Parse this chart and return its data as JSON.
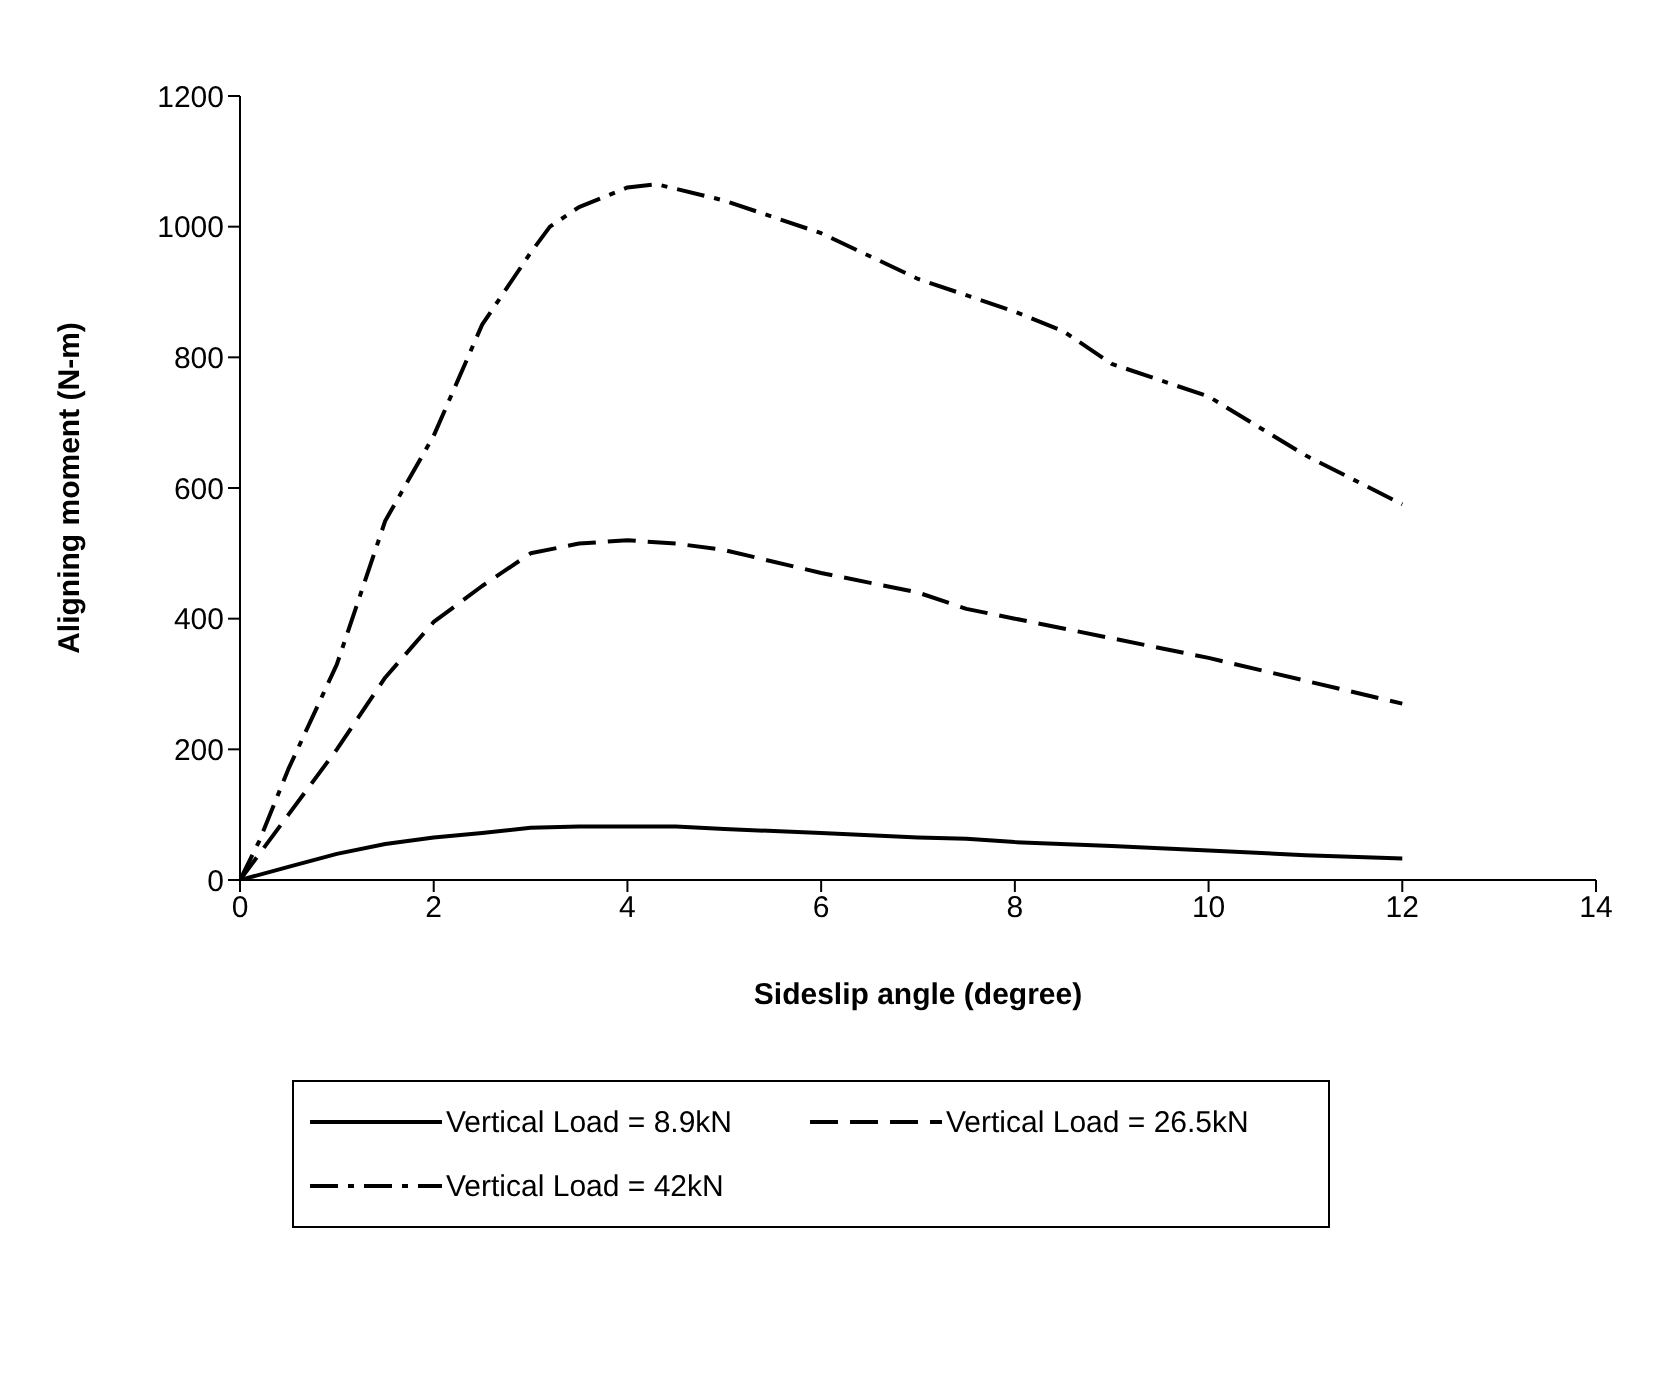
{
  "chart_data": {
    "type": "line",
    "xlabel": "Sideslip angle (degree)",
    "ylabel": "Aligning moment (N-m)",
    "xlim": [
      0,
      14
    ],
    "xticks": [
      0,
      2,
      4,
      6,
      8,
      10,
      12,
      14
    ],
    "ylim": [
      0,
      1200
    ],
    "yticks": [
      0,
      200,
      400,
      600,
      800,
      1000,
      1200
    ],
    "grid": false,
    "legend": "bottom",
    "marker": "none",
    "series": [
      {
        "name": "Vertical Load = 8.9kN",
        "color": "#000000",
        "line_style": "solid",
        "x": [
          0,
          0.5,
          1,
          1.5,
          2,
          2.5,
          3,
          3.5,
          4,
          4.5,
          5,
          6,
          7,
          7.5,
          8,
          9,
          10,
          11,
          12
        ],
        "values": [
          0,
          20,
          40,
          55,
          65,
          72,
          80,
          82,
          82,
          82,
          78,
          72,
          65,
          63,
          58,
          52,
          45,
          38,
          33
        ]
      },
      {
        "name": "Vertical Load = 26.5kN",
        "color": "#000000",
        "line_style": "dashed",
        "x": [
          0,
          0.2,
          0.5,
          1,
          1.5,
          2,
          2.5,
          3,
          3.5,
          4,
          4.5,
          5,
          6,
          7,
          7.5,
          8,
          9,
          10,
          11,
          12
        ],
        "values": [
          0,
          40,
          100,
          200,
          310,
          395,
          450,
          500,
          515,
          520,
          515,
          505,
          470,
          440,
          415,
          400,
          370,
          340,
          305,
          270
        ]
      },
      {
        "name": "Vertical Load = 42kN",
        "color": "#000000",
        "line_style": "dashdot",
        "x": [
          0,
          0.2,
          0.5,
          1,
          1.5,
          2,
          2.5,
          3,
          3.2,
          3.5,
          4,
          4.3,
          5,
          6,
          7,
          8,
          8.5,
          9,
          10,
          11,
          12
        ],
        "values": [
          0,
          60,
          170,
          330,
          550,
          680,
          850,
          960,
          1000,
          1030,
          1060,
          1065,
          1040,
          990,
          920,
          870,
          840,
          790,
          740,
          650,
          575
        ]
      }
    ]
  }
}
